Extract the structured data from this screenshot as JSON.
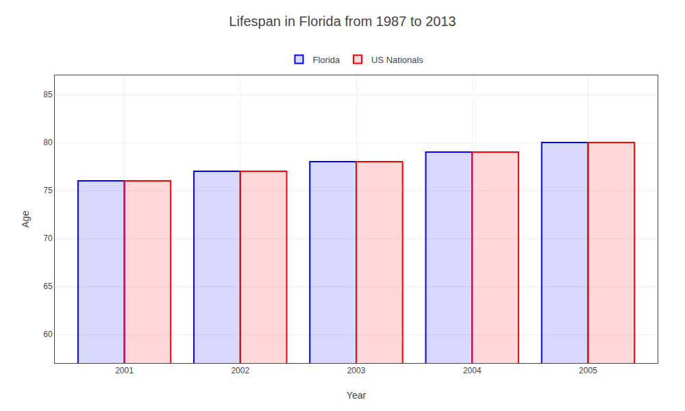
{
  "chart_data": {
    "type": "bar",
    "title": "Lifespan in Florida from 1987 to 2013",
    "x_label": "Year",
    "y_label": "Age",
    "categories": [
      "2001",
      "2002",
      "2003",
      "2004",
      "2005"
    ],
    "series": [
      {
        "name": "Florida",
        "color": "#0000ff",
        "values": [
          76,
          77,
          78,
          79,
          80
        ]
      },
      {
        "name": "US Nationals",
        "color": "#ff0000",
        "values": [
          76,
          77,
          78,
          79,
          80
        ]
      }
    ],
    "ylim": [
      57,
      87
    ],
    "yticks": [
      60,
      65,
      70,
      75,
      80,
      85
    ],
    "grid": true,
    "legend": "top"
  }
}
